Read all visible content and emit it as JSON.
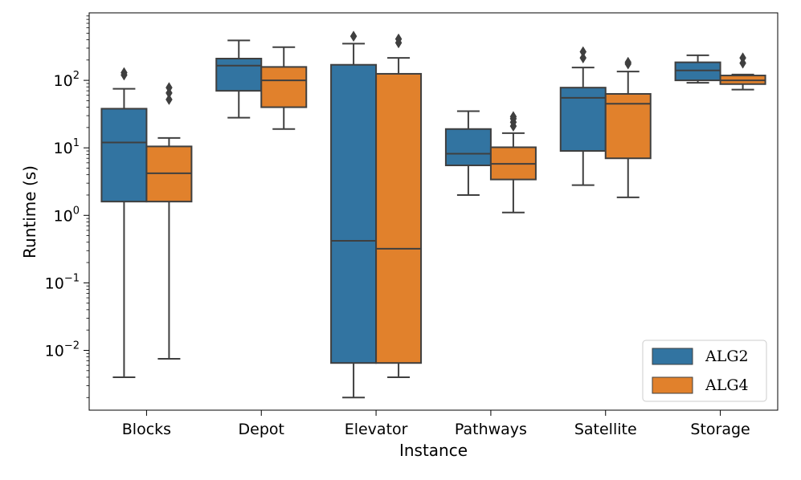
{
  "chart_data": {
    "type": "box",
    "xlabel": "Instance",
    "ylabel": "Runtime (s)",
    "yscale": "log",
    "ylim": [
      0.0013,
      1000
    ],
    "y_tick_exponents": [
      -2,
      -1,
      0,
      1,
      2
    ],
    "y_tick_base": "10",
    "categories": [
      "Blocks",
      "Depot",
      "Elevator",
      "Pathways",
      "Satellite",
      "Storage"
    ],
    "legend_position": "lower-right",
    "series": [
      {
        "name": "ALG2",
        "color": "#3274a1",
        "boxes": [
          {
            "whislo": 0.004,
            "q1": 1.6,
            "med": 12,
            "q3": 38,
            "whishi": 75,
            "fliers": [
              120,
              130
            ]
          },
          {
            "whislo": 28,
            "q1": 70,
            "med": 165,
            "q3": 210,
            "whishi": 390,
            "fliers": []
          },
          {
            "whislo": 0.002,
            "q1": 0.0065,
            "med": 0.42,
            "q3": 170,
            "whishi": 350,
            "fliers": [
              450
            ]
          },
          {
            "whislo": 2.0,
            "q1": 5.5,
            "med": 8.2,
            "q3": 19,
            "whishi": 35,
            "fliers": []
          },
          {
            "whislo": 2.8,
            "q1": 9,
            "med": 55,
            "q3": 78,
            "whishi": 155,
            "fliers": [
              215,
              265
            ]
          },
          {
            "whislo": 92,
            "q1": 100,
            "med": 140,
            "q3": 185,
            "whishi": 235,
            "fliers": []
          }
        ]
      },
      {
        "name": "ALG4",
        "color": "#e1812c",
        "boxes": [
          {
            "whislo": 0.0075,
            "q1": 1.6,
            "med": 4.2,
            "q3": 10.5,
            "whishi": 14,
            "fliers": [
              52,
              65,
              78
            ]
          },
          {
            "whislo": 19,
            "q1": 40,
            "med": 100,
            "q3": 158,
            "whishi": 310,
            "fliers": []
          },
          {
            "whislo": 0.004,
            "q1": 0.0065,
            "med": 0.32,
            "q3": 125,
            "whishi": 215,
            "fliers": [
              360,
              410
            ]
          },
          {
            "whislo": 1.1,
            "q1": 3.4,
            "med": 5.8,
            "q3": 10.2,
            "whishi": 16.5,
            "fliers": [
              21,
              24,
              27,
              29
            ]
          },
          {
            "whislo": 1.85,
            "q1": 7,
            "med": 45,
            "q3": 63,
            "whishi": 135,
            "fliers": [
              175,
              185
            ]
          },
          {
            "whislo": 73,
            "q1": 88,
            "med": 100,
            "q3": 118,
            "whishi": 122,
            "fliers": [
              180,
              215
            ]
          }
        ]
      }
    ]
  }
}
